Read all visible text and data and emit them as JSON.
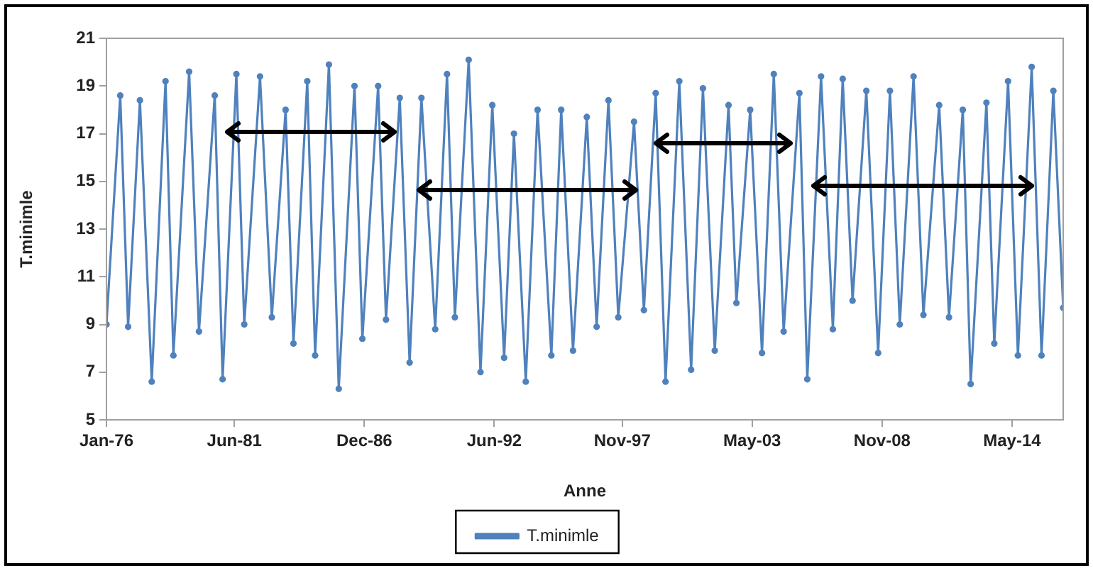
{
  "chart_data": {
    "type": "line",
    "xlabel": "Anne",
    "ylabel": "T.minimle",
    "x": [
      "1976-01",
      "1976-08",
      "1976-12",
      "1977-06",
      "1977-12",
      "1978-07",
      "1978-11",
      "1979-07",
      "1979-12",
      "1980-08",
      "1980-12",
      "1981-07",
      "1981-11",
      "1982-07",
      "1983-01",
      "1983-08",
      "1983-12",
      "1984-07",
      "1984-11",
      "1985-06",
      "1985-11",
      "1986-07",
      "1986-11",
      "1987-07",
      "1987-11",
      "1988-06",
      "1988-11",
      "1989-05",
      "1989-12",
      "1990-06",
      "1990-10",
      "1991-05",
      "1991-11",
      "1992-05",
      "1992-11",
      "1993-04",
      "1993-10",
      "1994-04",
      "1994-11",
      "1995-04",
      "1995-10",
      "1996-05",
      "1996-10",
      "1997-04",
      "1997-09",
      "1998-05",
      "1998-10",
      "1999-04",
      "1999-09",
      "2000-04",
      "2000-10",
      "2001-04",
      "2001-10",
      "2002-05",
      "2002-09",
      "2003-04",
      "2003-10",
      "2004-04",
      "2004-09",
      "2005-05",
      "2005-09",
      "2006-04",
      "2006-10",
      "2007-03",
      "2007-08",
      "2008-03",
      "2008-09",
      "2009-03",
      "2009-08",
      "2010-03",
      "2010-08",
      "2011-04",
      "2011-09",
      "2012-04",
      "2012-08",
      "2013-04",
      "2013-08",
      "2014-03",
      "2014-08",
      "2015-03",
      "2015-08",
      "2016-02",
      "2016-07"
    ],
    "series": [
      {
        "name": "T.minimle",
        "color": "#4f81bd",
        "values": [
          9.0,
          18.6,
          8.9,
          18.4,
          6.6,
          19.2,
          7.7,
          19.6,
          8.7,
          18.6,
          6.7,
          19.5,
          9.0,
          19.4,
          9.3,
          18.0,
          8.2,
          19.2,
          7.7,
          19.9,
          6.3,
          19.0,
          8.4,
          19.0,
          9.2,
          18.5,
          7.4,
          18.5,
          8.8,
          19.5,
          9.3,
          20.1,
          7.0,
          18.2,
          7.6,
          17.0,
          6.6,
          18.0,
          7.7,
          18.0,
          7.9,
          17.7,
          8.9,
          18.4,
          9.3,
          17.5,
          9.6,
          18.7,
          6.6,
          19.2,
          7.1,
          18.9,
          7.9,
          18.2,
          9.9,
          18.0,
          7.8,
          19.5,
          8.7,
          18.7,
          6.7,
          19.4,
          8.8,
          19.3,
          10.0,
          18.8,
          7.8,
          18.8,
          9.0,
          19.4,
          9.4,
          18.2,
          9.3,
          18.0,
          6.5,
          18.3,
          8.2,
          19.2,
          7.7,
          19.8,
          7.7,
          18.8,
          9.7
        ]
      }
    ],
    "xlim": [
      "1976-01",
      "2016-07"
    ],
    "xticks": [
      {
        "value": "1976-01",
        "label": "Jan-76"
      },
      {
        "value": "1981-06",
        "label": "Jun-81"
      },
      {
        "value": "1986-12",
        "label": "Dec-86"
      },
      {
        "value": "1992-06",
        "label": "Jun-92"
      },
      {
        "value": "1997-11",
        "label": "Nov-97"
      },
      {
        "value": "2003-05",
        "label": "May-03"
      },
      {
        "value": "2008-11",
        "label": "Nov-08"
      },
      {
        "value": "2014-05",
        "label": "May-14"
      }
    ],
    "ylim": [
      5,
      21
    ],
    "yticks": [
      5,
      7,
      9,
      11,
      13,
      15,
      17,
      19,
      21
    ],
    "grid": false,
    "legend": "bottom",
    "marker": "circle",
    "line_style": "solid"
  }
}
